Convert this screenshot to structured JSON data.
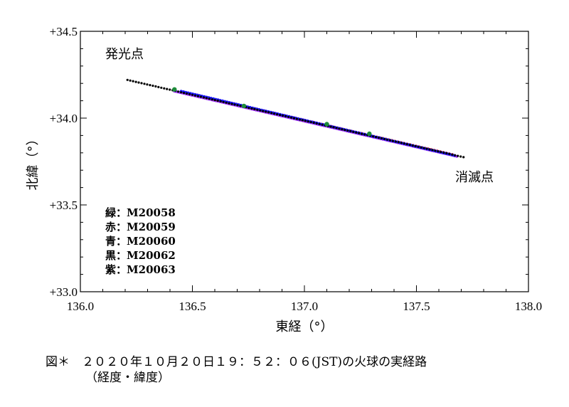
{
  "chart_data": {
    "type": "scatter",
    "title": "",
    "xlabel": "東経（°）",
    "ylabel": "北緯（°）",
    "xlim": [
      136.0,
      138.0
    ],
    "ylim": [
      33.0,
      34.5
    ],
    "x_ticks": [
      136.0,
      136.5,
      137.0,
      137.5,
      138.0
    ],
    "x_tick_labels": [
      "136.0",
      "136.5",
      "137.0",
      "137.5",
      "138.0"
    ],
    "y_ticks": [
      33.0,
      33.5,
      34.0,
      34.5
    ],
    "y_tick_labels": [
      "+33.0",
      "+33.5",
      "+34.0",
      "+34.5"
    ],
    "grid": false,
    "annotations": [
      {
        "text": "発光点",
        "x": 136.05,
        "y": 34.36
      },
      {
        "text": "消滅点",
        "x": 137.83,
        "y": 33.69
      }
    ],
    "legend": {
      "placement": "lower-left",
      "entries": [
        {
          "color_name": "緑",
          "station": "M20058"
        },
        {
          "color_name": "赤",
          "station": "M20059"
        },
        {
          "color_name": "青",
          "station": "M20060"
        },
        {
          "color_name": "黒",
          "station": "M20062"
        },
        {
          "color_name": "紫",
          "station": "M20063"
        }
      ]
    },
    "series": [
      {
        "name": "M20062",
        "color": "#000000",
        "x_start": 136.21,
        "y_start": 34.22,
        "x_end": 137.71,
        "y_end": 33.775,
        "count": 120
      },
      {
        "name": "M20063",
        "color": "#9b30ff",
        "x_start": 136.42,
        "y_start": 34.155,
        "x_end": 137.68,
        "y_end": 33.78,
        "count": 150
      },
      {
        "name": "M20059",
        "color": "#e00000",
        "x_start": 136.46,
        "y_start": 34.15,
        "x_end": 137.66,
        "y_end": 33.79,
        "count": 90
      },
      {
        "name": "M20060",
        "color": "#1a1aff",
        "x_start": 136.45,
        "y_start": 34.155,
        "x_end": 137.67,
        "y_end": 33.785,
        "count": 120
      },
      {
        "name": "M20058",
        "color": "#1e8c3a",
        "x": [
          136.42,
          136.73,
          137.1,
          137.29
        ],
        "y": [
          34.165,
          34.07,
          33.965,
          33.91
        ]
      }
    ]
  },
  "caption": {
    "line1": "図＊　２０２０年１０月２０日１９：５２：０６(JST)の火球の実経路",
    "line2": "（経度・緯度）"
  }
}
